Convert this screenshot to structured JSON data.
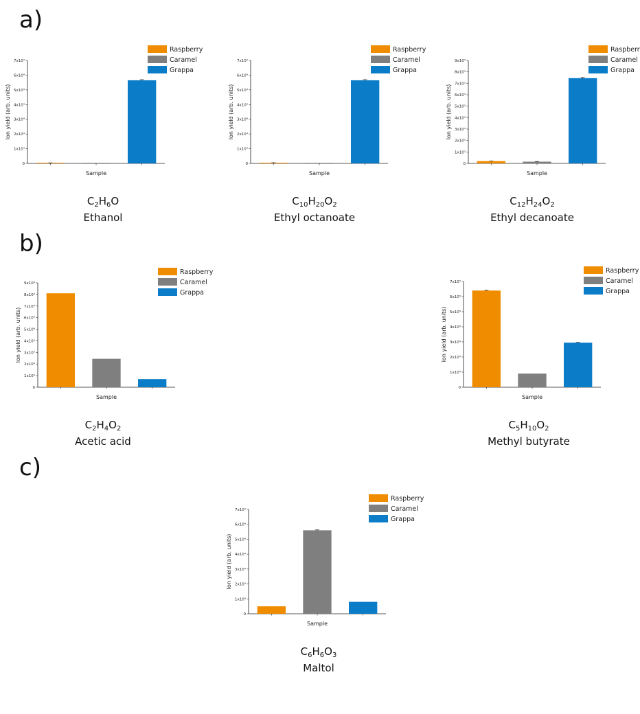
{
  "panels": [
    {
      "label": "a)"
    },
    {
      "label": "b)"
    },
    {
      "label": "c)"
    }
  ],
  "colors": {
    "Raspberry": "#f08c00",
    "Caramel": "#7f7f7f",
    "Grappa": "#0a7cc8"
  },
  "chart_data": [
    {
      "id": "ethanol",
      "type": "bar",
      "categories": [
        "Raspberry",
        "Caramel",
        "Grappa"
      ],
      "values": [
        0.03,
        0.0,
        5.65
      ],
      "errors": [
        0.01,
        0.0,
        0.05
      ],
      "ylim": [
        0,
        7
      ],
      "yticks": [
        "0",
        "1x10⁴",
        "2x10⁴",
        "3x10⁴",
        "4x10⁴",
        "5x10⁴",
        "6x10⁴",
        "7x10⁴"
      ],
      "xlabel": "Sample",
      "ylabel": "Ion yield (arb. units)",
      "legend": [
        "Raspberry",
        "Caramel",
        "Grappa"
      ],
      "formula": [
        [
          "C",
          ""
        ],
        [
          "2",
          "sub"
        ],
        [
          "H",
          ""
        ],
        [
          "6",
          "sub"
        ],
        [
          "O",
          ""
        ]
      ],
      "name": "Ethanol"
    },
    {
      "id": "ethyl-octanoate",
      "type": "bar",
      "categories": [
        "Raspberry",
        "Caramel",
        "Grappa"
      ],
      "values": [
        0.04,
        0.0,
        5.65
      ],
      "errors": [
        0.01,
        0.0,
        0.05
      ],
      "ylim": [
        0,
        7
      ],
      "yticks": [
        "0",
        "1x10⁴",
        "2x10⁴",
        "3x10⁴",
        "4x10⁴",
        "5x10⁴",
        "6x10⁴",
        "7x10⁴"
      ],
      "xlabel": "Sample",
      "ylabel": "Ion yield (arb. units)",
      "legend": [
        "Raspberry",
        "Caramel",
        "Grappa"
      ],
      "formula": [
        [
          "C",
          ""
        ],
        [
          "10",
          "sub"
        ],
        [
          "H",
          ""
        ],
        [
          "20",
          "sub"
        ],
        [
          "O",
          ""
        ],
        [
          "2",
          "sub"
        ]
      ],
      "name": "Ethyl octanoate"
    },
    {
      "id": "ethyl-decanoate",
      "type": "bar",
      "categories": [
        "Raspberry",
        "Caramel",
        "Grappa"
      ],
      "values": [
        0.2,
        0.15,
        7.45
      ],
      "errors": [
        0.02,
        0.02,
        0.08
      ],
      "ylim": [
        0,
        9
      ],
      "yticks": [
        "0",
        "1x10³",
        "2x10³",
        "3x10³",
        "4x10³",
        "5x10³",
        "6x10³",
        "7x10³",
        "8x10³",
        "9x10³"
      ],
      "xlabel": "Sample",
      "ylabel": "Ion yield (arb. units)",
      "legend": [
        "Raspberry",
        "Caramel",
        "Grappa"
      ],
      "formula": [
        [
          "C",
          ""
        ],
        [
          "12",
          "sub"
        ],
        [
          "H",
          ""
        ],
        [
          "24",
          "sub"
        ],
        [
          "O",
          ""
        ],
        [
          "2",
          "sub"
        ]
      ],
      "name": "Ethyl decanoate"
    },
    {
      "id": "acetic-acid",
      "type": "bar",
      "categories": [
        "Raspberry",
        "Caramel",
        "Grappa"
      ],
      "values": [
        8.1,
        2.45,
        0.7
      ],
      "errors": [
        0.0,
        0.0,
        0.0
      ],
      "ylim": [
        0,
        9
      ],
      "yticks": [
        "0",
        "1x10⁴",
        "2x10⁴",
        "3x10⁴",
        "4x10⁴",
        "5x10⁴",
        "6x10⁴",
        "7x10⁴",
        "8x10⁴",
        "9x10⁴"
      ],
      "xlabel": "Sample",
      "ylabel": "Ion yield (arb. units)",
      "legend": [
        "Raspberry",
        "Caramel",
        "Grappa"
      ],
      "formula": [
        [
          "C",
          ""
        ],
        [
          "2",
          "sub"
        ],
        [
          "H",
          ""
        ],
        [
          "4",
          "sub"
        ],
        [
          "O",
          ""
        ],
        [
          "2",
          "sub"
        ]
      ],
      "name": "Acetic acid"
    },
    {
      "id": "methyl-butyrate",
      "type": "bar",
      "categories": [
        "Raspberry",
        "Caramel",
        "Grappa"
      ],
      "values": [
        6.4,
        0.9,
        2.95
      ],
      "errors": [
        0.03,
        0.0,
        0.03
      ],
      "ylim": [
        0,
        7
      ],
      "yticks": [
        "0",
        "1x10³",
        "2x10³",
        "3x10³",
        "4x10³",
        "5x10³",
        "6x10³",
        "7x10³"
      ],
      "xlabel": "Sample",
      "ylabel": "Ion yield (arb. units)",
      "legend": [
        "Raspberry",
        "Caramel",
        "Grappa"
      ],
      "formula": [
        [
          "C",
          ""
        ],
        [
          "5",
          "sub"
        ],
        [
          "H",
          ""
        ],
        [
          "10",
          "sub"
        ],
        [
          "O",
          ""
        ],
        [
          "2",
          "sub"
        ]
      ],
      "name": "Methyl butyrate"
    },
    {
      "id": "maltol",
      "type": "bar",
      "categories": [
        "Raspberry",
        "Caramel",
        "Grappa"
      ],
      "values": [
        0.5,
        5.6,
        0.8
      ],
      "errors": [
        0.0,
        0.03,
        0.0
      ],
      "ylim": [
        0,
        7
      ],
      "yticks": [
        "0",
        "1x10⁴",
        "2x10⁴",
        "3x10⁴",
        "4x10⁴",
        "5x10⁴",
        "6x10⁴",
        "7x10⁴"
      ],
      "xlabel": "Sample",
      "ylabel": "Ion yield (arb. units)",
      "legend": [
        "Raspberry",
        "Caramel",
        "Grappa"
      ],
      "formula": [
        [
          "C",
          ""
        ],
        [
          "6",
          "sub"
        ],
        [
          "H",
          ""
        ],
        [
          "6",
          "sub"
        ],
        [
          "O",
          ""
        ],
        [
          "3",
          "sub"
        ]
      ],
      "name": "Maltol"
    }
  ]
}
